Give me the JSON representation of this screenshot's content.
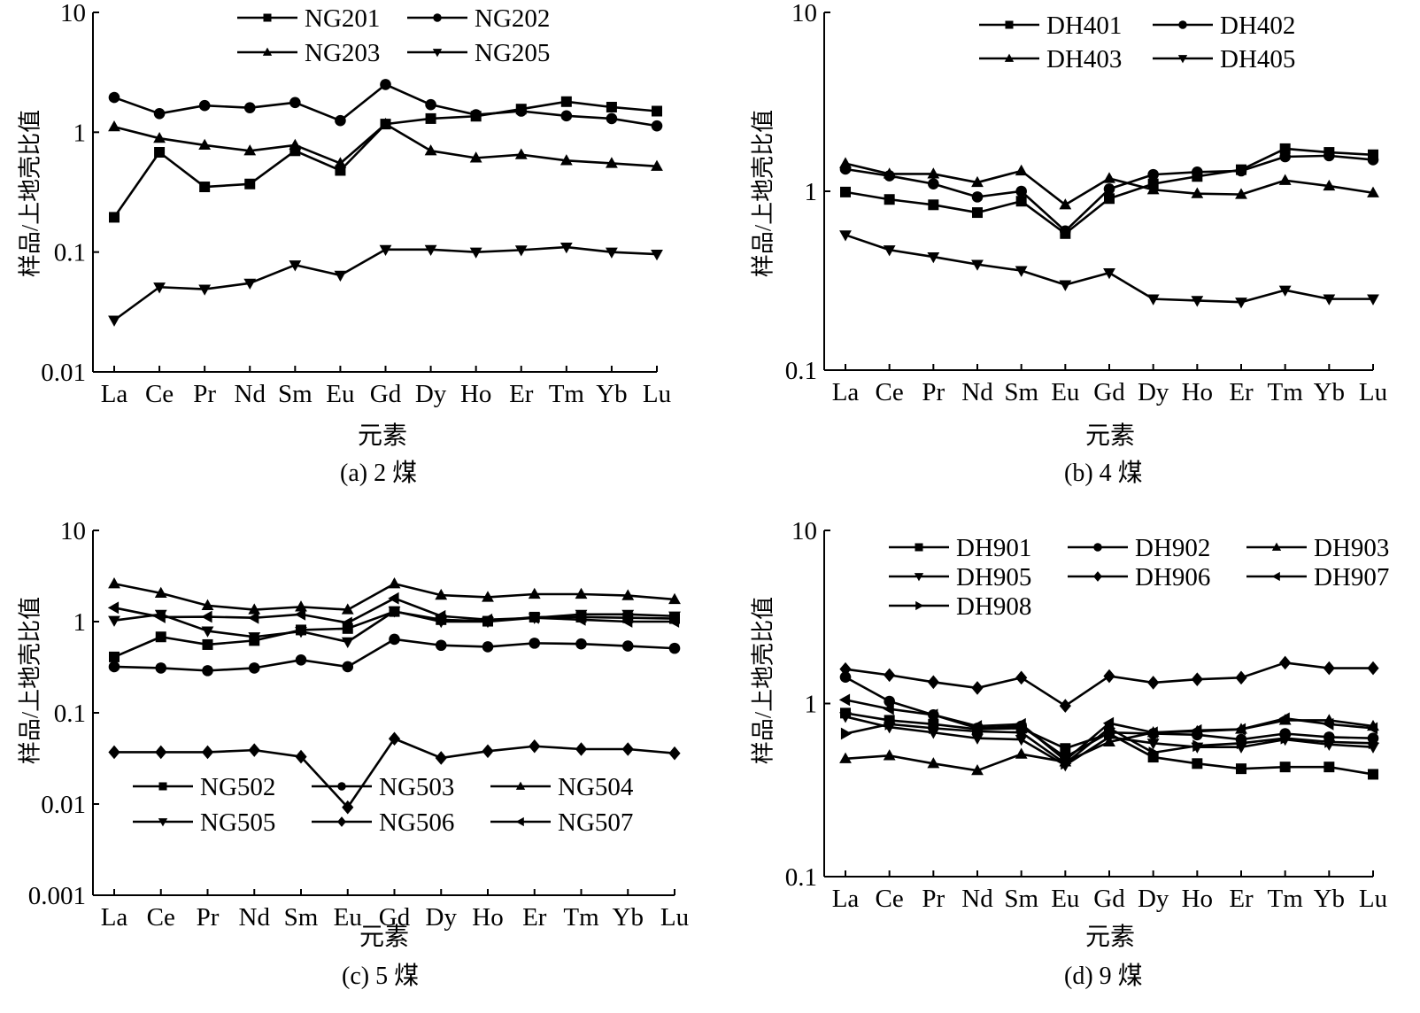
{
  "chart_data": [
    {
      "id": "a",
      "type": "line",
      "yscale": "log",
      "title": "",
      "caption": "(a)  2 煤",
      "xlabel": "元素",
      "ylabel": "样品/上地壳比值",
      "ylim": [
        0.01,
        10
      ],
      "yticks": [
        0.01,
        0.1,
        1,
        10
      ],
      "ytick_labels": [
        "0.01",
        "0.1",
        "1",
        "10"
      ],
      "categories": [
        "La",
        "Ce",
        "Pr",
        "Nd",
        "Sm",
        "Eu",
        "Gd",
        "Dy",
        "Ho",
        "Er",
        "Tm",
        "Yb",
        "Lu"
      ],
      "legend": {
        "position": "top-center",
        "columns": 2
      },
      "series": [
        {
          "name": "NG201",
          "marker": "square",
          "values": [
            0.195,
            0.68,
            0.35,
            0.37,
            0.7,
            0.48,
            1.17,
            1.3,
            1.36,
            1.56,
            1.8,
            1.62,
            1.5
          ]
        },
        {
          "name": "NG202",
          "marker": "circle",
          "values": [
            1.95,
            1.43,
            1.67,
            1.6,
            1.77,
            1.25,
            2.5,
            1.7,
            1.4,
            1.5,
            1.37,
            1.3,
            1.13
          ]
        },
        {
          "name": "NG203",
          "marker": "triangle-up",
          "values": [
            1.11,
            0.89,
            0.78,
            0.7,
            0.78,
            0.55,
            1.17,
            0.7,
            0.61,
            0.65,
            0.58,
            0.55,
            0.52
          ]
        },
        {
          "name": "NG205",
          "marker": "triangle-down",
          "values": [
            0.027,
            0.051,
            0.049,
            0.055,
            0.078,
            0.064,
            0.105,
            0.105,
            0.1,
            0.104,
            0.11,
            0.1,
            0.096
          ]
        }
      ]
    },
    {
      "id": "b",
      "type": "line",
      "yscale": "log",
      "title": "",
      "caption": "(b)  4 煤",
      "xlabel": "元素",
      "ylabel": "样品/上地壳比值",
      "ylim": [
        0.1,
        10
      ],
      "yticks": [
        0.1,
        1,
        10
      ],
      "ytick_labels": [
        "0.1",
        "1",
        "10"
      ],
      "categories": [
        "La",
        "Ce",
        "Pr",
        "Nd",
        "Sm",
        "Eu",
        "Gd",
        "Dy",
        "Ho",
        "Er",
        "Tm",
        "Yb",
        "Lu"
      ],
      "legend": {
        "position": "top-center",
        "columns": 2
      },
      "series": [
        {
          "name": "DH401",
          "marker": "square",
          "values": [
            0.99,
            0.9,
            0.84,
            0.76,
            0.88,
            0.58,
            0.91,
            1.1,
            1.21,
            1.32,
            1.73,
            1.65,
            1.6
          ]
        },
        {
          "name": "DH402",
          "marker": "circle",
          "values": [
            1.33,
            1.22,
            1.1,
            0.93,
            1.0,
            0.6,
            1.03,
            1.24,
            1.28,
            1.3,
            1.56,
            1.58,
            1.5
          ]
        },
        {
          "name": "DH403",
          "marker": "triangle-up",
          "values": [
            1.43,
            1.25,
            1.25,
            1.12,
            1.3,
            0.84,
            1.18,
            1.02,
            0.97,
            0.96,
            1.15,
            1.07,
            0.98
          ]
        },
        {
          "name": "DH405",
          "marker": "triangle-down",
          "values": [
            0.57,
            0.47,
            0.43,
            0.39,
            0.36,
            0.3,
            0.35,
            0.25,
            0.245,
            0.24,
            0.28,
            0.25,
            0.25
          ]
        }
      ]
    },
    {
      "id": "c",
      "type": "line",
      "yscale": "log",
      "title": "",
      "caption": "(c)  5 煤",
      "xlabel": "元素",
      "ylabel": "样品/上地壳比值",
      "ylim": [
        0.001,
        10
      ],
      "yticks": [
        0.001,
        0.01,
        0.1,
        1,
        10
      ],
      "ytick_labels": [
        "0.001",
        "0.01",
        "0.1",
        "1",
        "10"
      ],
      "categories": [
        "La",
        "Ce",
        "Pr",
        "Nd",
        "Sm",
        "Eu",
        "Gd",
        "Dy",
        "Ho",
        "Er",
        "Tm",
        "Yb",
        "Lu"
      ],
      "legend": {
        "position": "bottom-center",
        "columns": 3
      },
      "series": [
        {
          "name": "NG502",
          "marker": "square",
          "values": [
            0.41,
            0.68,
            0.56,
            0.62,
            0.81,
            0.84,
            1.29,
            1.05,
            1.01,
            1.12,
            1.12,
            1.1,
            1.08
          ]
        },
        {
          "name": "NG503",
          "marker": "circle",
          "values": [
            0.32,
            0.31,
            0.29,
            0.31,
            0.38,
            0.32,
            0.64,
            0.55,
            0.53,
            0.58,
            0.57,
            0.54,
            0.51
          ]
        },
        {
          "name": "NG504",
          "marker": "triangle-up",
          "values": [
            2.6,
            2.05,
            1.5,
            1.35,
            1.45,
            1.35,
            2.6,
            1.95,
            1.85,
            2.0,
            2.0,
            1.93,
            1.75
          ]
        },
        {
          "name": "NG505",
          "marker": "triangle-down",
          "values": [
            1.03,
            1.2,
            0.79,
            0.68,
            0.78,
            0.6,
            1.3,
            1.0,
            1.0,
            1.1,
            1.2,
            1.2,
            1.15
          ]
        },
        {
          "name": "NG506",
          "marker": "diamond",
          "values": [
            0.037,
            0.037,
            0.037,
            0.039,
            0.033,
            0.0092,
            0.052,
            0.032,
            0.038,
            0.043,
            0.04,
            0.04,
            0.036
          ]
        },
        {
          "name": "NG507",
          "marker": "triangle-left",
          "values": [
            1.42,
            1.12,
            1.13,
            1.1,
            1.2,
            0.97,
            1.8,
            1.15,
            1.05,
            1.1,
            1.05,
            1.0,
            1.0
          ]
        }
      ]
    },
    {
      "id": "d",
      "type": "line",
      "yscale": "log",
      "title": "",
      "caption": "(d)  9 煤",
      "xlabel": "元素",
      "ylabel": "样品/上地壳比值",
      "ylim": [
        0.1,
        10
      ],
      "yticks": [
        0.1,
        1,
        10
      ],
      "ytick_labels": [
        "0.1",
        "1",
        "10"
      ],
      "categories": [
        "La",
        "Ce",
        "Pr",
        "Nd",
        "Sm",
        "Eu",
        "Gd",
        "Dy",
        "Ho",
        "Er",
        "Tm",
        "Yb",
        "Lu"
      ],
      "legend": {
        "position": "top-center",
        "columns": 3
      },
      "series": [
        {
          "name": "DH901",
          "marker": "square",
          "values": [
            0.88,
            0.8,
            0.76,
            0.71,
            0.72,
            0.55,
            0.67,
            0.49,
            0.45,
            0.42,
            0.43,
            0.43,
            0.39
          ]
        },
        {
          "name": "DH902",
          "marker": "circle",
          "values": [
            1.42,
            1.03,
            0.86,
            0.72,
            0.74,
            0.49,
            0.68,
            0.67,
            0.66,
            0.62,
            0.67,
            0.64,
            0.63
          ]
        },
        {
          "name": "DH903",
          "marker": "triangle-up",
          "values": [
            0.48,
            0.5,
            0.45,
            0.41,
            0.51,
            0.46,
            0.6,
            0.68,
            0.69,
            0.71,
            0.8,
            0.8,
            0.74
          ]
        },
        {
          "name": "DH905",
          "marker": "triangle-down",
          "values": [
            0.84,
            0.73,
            0.68,
            0.63,
            0.62,
            0.44,
            0.64,
            0.59,
            0.56,
            0.56,
            0.62,
            0.58,
            0.56
          ]
        },
        {
          "name": "DH906",
          "marker": "diamond",
          "values": [
            1.58,
            1.46,
            1.33,
            1.23,
            1.41,
            0.97,
            1.44,
            1.32,
            1.38,
            1.41,
            1.72,
            1.6,
            1.6
          ]
        },
        {
          "name": "DH907",
          "marker": "triangle-left",
          "values": [
            1.05,
            0.93,
            0.86,
            0.74,
            0.76,
            0.47,
            0.77,
            0.68,
            0.7,
            0.71,
            0.82,
            0.76,
            0.72
          ]
        },
        {
          "name": "DH908",
          "marker": "triangle-right",
          "values": [
            0.67,
            0.76,
            0.72,
            0.69,
            0.68,
            0.45,
            0.72,
            0.52,
            0.57,
            0.59,
            0.63,
            0.6,
            0.59
          ]
        }
      ]
    }
  ]
}
